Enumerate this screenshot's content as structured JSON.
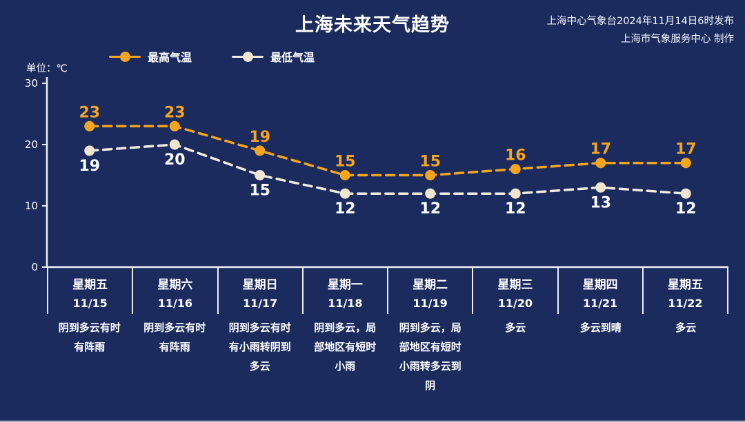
{
  "header": {
    "title": "上海未来天气趋势",
    "publisher_line1": "上海中心气象台2024年11月14日6时发布",
    "publisher_line2": "上海市气象服务中心 制作",
    "unit_label": "单位：℃"
  },
  "colors": {
    "background": "#1b2b5e",
    "axis": "#eef0f6",
    "high_series": "#f5a51c",
    "high_label": "#f5a51c",
    "low_series_line": "#f2ecdd",
    "low_series_dot": "#f0e6cf",
    "low_label": "#ffffff",
    "text": "#ffffff"
  },
  "legend": [
    {
      "label": "最高气温",
      "color": "#f5a51c",
      "dot_color": "#f5a51c"
    },
    {
      "label": "最低气温",
      "color": "#f2ecdd",
      "dot_color": "#f0e6cf"
    }
  ],
  "chart_data": {
    "type": "line",
    "title": "上海未来天气趋势",
    "categories": [
      "星期五 11/15",
      "星期六 11/16",
      "星期日 11/17",
      "星期一 11/18",
      "星期二 11/19",
      "星期三 11/20",
      "星期四 11/21",
      "星期五 11/22"
    ],
    "series": [
      {
        "name": "最高气温",
        "values": [
          23,
          23,
          19,
          15,
          15,
          16,
          17,
          17
        ],
        "color": "#f5a51c",
        "dot_color": "#f5a51c",
        "label_color": "#f5a51c",
        "label_position": "above"
      },
      {
        "name": "最低气温",
        "values": [
          19,
          20,
          15,
          12,
          12,
          12,
          13,
          12
        ],
        "color": "#f2ecdd",
        "dot_color": "#f0e6cf",
        "label_color": "#ffffff",
        "label_position": "below"
      }
    ],
    "xlabel": "",
    "ylabel": "单位：℃",
    "ylim": [
      0,
      30
    ],
    "yticks": [
      0,
      10,
      20,
      30
    ],
    "grid": false,
    "line_style": "dashed",
    "legend_position": "top-left"
  },
  "days": [
    {
      "weekday": "星期五",
      "date": "11/15",
      "description": "阴到多云有时有阵雨"
    },
    {
      "weekday": "星期六",
      "date": "11/16",
      "description": "阴到多云有时有阵雨"
    },
    {
      "weekday": "星期日",
      "date": "11/17",
      "description": "阴到多云有时有小雨转阴到多云"
    },
    {
      "weekday": "星期一",
      "date": "11/18",
      "description": "阴到多云，局部地区有短时小雨"
    },
    {
      "weekday": "星期二",
      "date": "11/19",
      "description": "阴到多云，局部地区有短时小雨转多云到阴"
    },
    {
      "weekday": "星期三",
      "date": "11/20",
      "description": "多云"
    },
    {
      "weekday": "星期四",
      "date": "11/21",
      "description": "多云到晴"
    },
    {
      "weekday": "星期五",
      "date": "11/22",
      "description": "多云"
    }
  ]
}
